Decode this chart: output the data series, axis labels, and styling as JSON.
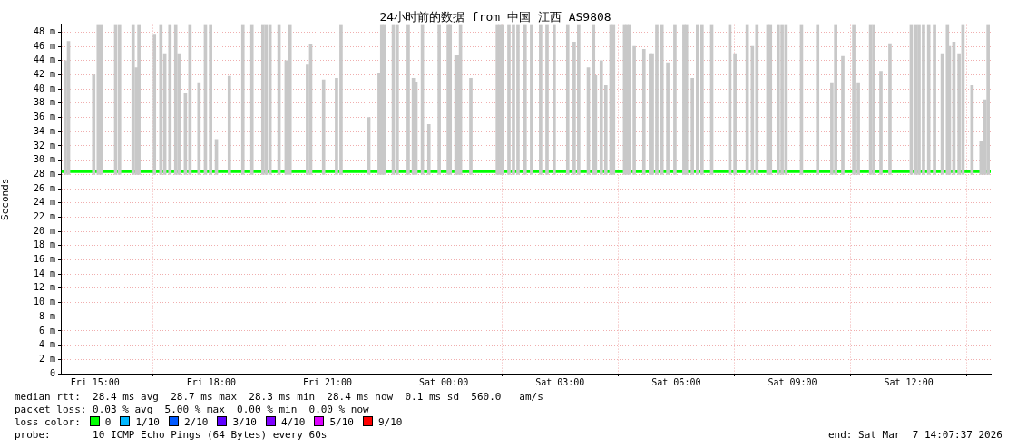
{
  "chart_data": {
    "type": "line",
    "title": "24小时前的数据 from 中国 江西 AS9808",
    "ylabel": "Seconds",
    "legend_title": "loss color:",
    "legend": "bottom",
    "grid": true,
    "marker": "none",
    "xlim": [
      "2026-03-06T14:07",
      "2026-03-07T14:07"
    ],
    "xticks": [
      {
        "value": "2026-03-06T15:00",
        "label": "Fri 15:00"
      },
      {
        "value": "2026-03-06T18:00",
        "label": "Fri 18:00"
      },
      {
        "value": "2026-03-06T21:00",
        "label": "Fri 21:00"
      },
      {
        "value": "2026-03-07T00:00",
        "label": "Sat 00:00"
      },
      {
        "value": "2026-03-07T03:00",
        "label": "Sat 03:00"
      },
      {
        "value": "2026-03-07T06:00",
        "label": "Sat 06:00"
      },
      {
        "value": "2026-03-07T09:00",
        "label": "Sat 09:00"
      },
      {
        "value": "2026-03-07T12:00",
        "label": "Sat 12:00"
      }
    ],
    "ylim": [
      0,
      49
    ],
    "yticks": [
      0,
      {
        "value": 2,
        "label": "2 m"
      },
      {
        "value": 4,
        "label": "4 m"
      },
      {
        "value": 6,
        "label": "6 m"
      },
      {
        "value": 8,
        "label": "8 m"
      },
      {
        "value": 10,
        "label": "10 m"
      },
      {
        "value": 12,
        "label": "12 m"
      },
      {
        "value": 14,
        "label": "14 m"
      },
      {
        "value": 16,
        "label": "16 m"
      },
      {
        "value": 18,
        "label": "18 m"
      },
      {
        "value": 20,
        "label": "20 m"
      },
      {
        "value": 22,
        "label": "22 m"
      },
      {
        "value": 24,
        "label": "24 m"
      },
      {
        "value": 26,
        "label": "26 m"
      },
      {
        "value": 28,
        "label": "28 m"
      },
      {
        "value": 30,
        "label": "30 m"
      },
      {
        "value": 32,
        "label": "32 m"
      },
      {
        "value": 34,
        "label": "34 m"
      },
      {
        "value": 36,
        "label": "36 m"
      },
      {
        "value": 38,
        "label": "38 m"
      },
      {
        "value": 40,
        "label": "40 m"
      },
      {
        "value": 42,
        "label": "42 m"
      },
      {
        "value": 44,
        "label": "44 m"
      },
      {
        "value": 46,
        "label": "46 m"
      },
      {
        "value": 48,
        "label": "48 m"
      }
    ],
    "series": [
      {
        "type": "bar",
        "color": "#c8c8c8",
        "x": [
          "2026-03-06T14:14",
          "2026-03-06T14:19",
          "2026-03-06T14:58",
          "2026-03-06T15:05",
          "2026-03-06T15:10",
          "2026-03-06T15:32",
          "2026-03-06T15:38",
          "2026-03-06T15:59",
          "2026-03-06T16:04",
          "2026-03-06T16:08",
          "2026-03-06T16:32",
          "2026-03-06T16:42",
          "2026-03-06T16:48",
          "2026-03-06T16:56",
          "2026-03-06T17:05",
          "2026-03-06T17:10",
          "2026-03-06T17:20",
          "2026-03-06T17:27",
          "2026-03-06T17:41",
          "2026-03-06T17:51",
          "2026-03-06T17:59",
          "2026-03-06T18:08",
          "2026-03-06T18:28",
          "2026-03-06T18:49",
          "2026-03-06T19:03",
          "2026-03-06T19:20",
          "2026-03-06T19:25",
          "2026-03-06T19:31",
          "2026-03-06T19:45",
          "2026-03-06T19:56",
          "2026-03-06T20:02",
          "2026-03-06T20:29",
          "2026-03-06T20:34",
          "2026-03-06T20:54",
          "2026-03-06T21:14",
          "2026-03-06T21:21",
          "2026-03-06T22:04",
          "2026-03-06T22:20",
          "2026-03-06T22:24",
          "2026-03-06T22:28",
          "2026-03-06T22:42",
          "2026-03-06T22:48",
          "2026-03-06T23:05",
          "2026-03-06T23:13",
          "2026-03-06T23:17",
          "2026-03-06T23:27",
          "2026-03-06T23:37",
          "2026-03-06T23:53",
          "2026-03-07T00:07",
          "2026-03-07T00:10",
          "2026-03-07T00:19",
          "2026-03-07T00:23",
          "2026-03-07T00:26",
          "2026-03-07T00:42",
          "2026-03-07T01:23",
          "2026-03-07T01:27",
          "2026-03-07T01:31",
          "2026-03-07T01:41",
          "2026-03-07T01:48",
          "2026-03-07T01:55",
          "2026-03-07T02:06",
          "2026-03-07T02:16",
          "2026-03-07T02:30",
          "2026-03-07T02:40",
          "2026-03-07T02:51",
          "2026-03-07T03:12",
          "2026-03-07T03:22",
          "2026-03-07T03:29",
          "2026-03-07T03:44",
          "2026-03-07T03:52",
          "2026-03-07T03:55",
          "2026-03-07T04:04",
          "2026-03-07T04:11",
          "2026-03-07T04:19",
          "2026-03-07T04:23",
          "2026-03-07T04:40",
          "2026-03-07T04:44",
          "2026-03-07T04:48",
          "2026-03-07T04:55",
          "2026-03-07T05:10",
          "2026-03-07T05:20",
          "2026-03-07T05:23",
          "2026-03-07T05:30",
          "2026-03-07T05:38",
          "2026-03-07T05:47",
          "2026-03-07T05:58",
          "2026-03-07T06:12",
          "2026-03-07T06:16",
          "2026-03-07T06:25",
          "2026-03-07T06:33",
          "2026-03-07T06:40",
          "2026-03-07T06:55",
          "2026-03-07T07:23",
          "2026-03-07T07:31",
          "2026-03-07T07:50",
          "2026-03-07T07:58",
          "2026-03-07T08:05",
          "2026-03-07T08:22",
          "2026-03-07T08:26",
          "2026-03-07T08:38",
          "2026-03-07T08:44",
          "2026-03-07T08:50",
          "2026-03-07T09:14",
          "2026-03-07T09:39",
          "2026-03-07T10:01",
          "2026-03-07T10:07",
          "2026-03-07T10:18",
          "2026-03-07T10:35",
          "2026-03-07T10:42",
          "2026-03-07T11:01",
          "2026-03-07T11:06",
          "2026-03-07T11:17",
          "2026-03-07T11:31",
          "2026-03-07T12:04",
          "2026-03-07T12:11",
          "2026-03-07T12:16",
          "2026-03-07T12:23",
          "2026-03-07T12:31",
          "2026-03-07T12:40",
          "2026-03-07T12:52",
          "2026-03-07T13:00",
          "2026-03-07T13:03",
          "2026-03-07T13:10",
          "2026-03-07T13:18",
          "2026-03-07T13:24",
          "2026-03-07T13:38",
          "2026-03-07T13:52",
          "2026-03-07T13:58",
          "2026-03-07T14:03"
        ],
        "base": [
          28,
          28,
          28,
          28,
          28,
          28,
          28,
          28,
          28,
          28,
          28,
          28,
          28,
          28,
          28,
          28,
          28,
          28,
          28,
          28,
          28,
          28,
          28,
          28,
          28,
          28,
          28,
          28,
          28,
          28,
          28,
          28,
          28,
          28,
          28,
          28,
          28,
          28,
          28,
          28,
          28,
          28,
          28,
          28,
          28,
          28,
          28,
          28,
          28,
          28,
          28,
          28,
          28,
          28,
          28,
          28,
          28,
          28,
          28,
          28,
          28,
          28,
          28,
          28,
          28,
          28,
          28,
          28,
          28,
          28,
          28,
          28,
          28,
          28,
          28,
          28,
          28,
          28,
          28,
          28,
          28,
          28,
          28,
          28,
          28,
          28,
          28,
          28,
          28,
          28,
          28,
          28,
          28,
          28,
          28,
          28,
          28,
          28,
          28,
          28,
          28,
          28,
          28,
          28,
          28,
          28,
          28,
          28,
          28,
          28,
          28,
          28,
          28,
          28,
          28,
          28,
          28,
          28,
          28,
          28,
          28,
          28,
          28,
          28,
          28,
          28,
          28,
          28,
          28
        ],
        "values": [
          16,
          18.7,
          14,
          21,
          21,
          21,
          21,
          21,
          15,
          21,
          19.6,
          21,
          17,
          21,
          21,
          17,
          11.4,
          21,
          12.9,
          21,
          21,
          4.9,
          13.8,
          21,
          21,
          21,
          21,
          21,
          21,
          16,
          21,
          15.4,
          18.3,
          13.3,
          13.5,
          21,
          8,
          14.2,
          21,
          21,
          21,
          21,
          21,
          13.5,
          13,
          21,
          7,
          21,
          21,
          21,
          16.7,
          16.7,
          21,
          13.5,
          21,
          21,
          21,
          21,
          21,
          21,
          21,
          21,
          21,
          21,
          21,
          21,
          18.6,
          21,
          15,
          21,
          13.9,
          16,
          12.5,
          21,
          21,
          21,
          21,
          21,
          18,
          17.6,
          17,
          17,
          21,
          21,
          15.7,
          21,
          21,
          21,
          13.5,
          21,
          21,
          21,
          21,
          17,
          21,
          18,
          21,
          21,
          21,
          21,
          21,
          21,
          21,
          21,
          12.9,
          21,
          16.6,
          21,
          12.9,
          21,
          21,
          14.5,
          18.4,
          21,
          21,
          21,
          21,
          21,
          21,
          17,
          21,
          18,
          18.6,
          17,
          21,
          12.5,
          4.6,
          10.5,
          21
        ]
      },
      {
        "name": "0",
        "color": "#00ff00",
        "x": [
          "2026-03-06T14:08",
          "2026-03-06T15:00",
          "2026-03-06T16:00",
          "2026-03-06T17:00",
          "2026-03-06T18:00",
          "2026-03-06T19:00",
          "2026-03-06T20:00",
          "2026-03-06T21:00",
          "2026-03-06T22:00",
          "2026-03-06T23:00",
          "2026-03-07T00:00",
          "2026-03-07T01:00",
          "2026-03-07T02:00",
          "2026-03-07T03:00",
          "2026-03-07T04:00",
          "2026-03-07T05:00",
          "2026-03-07T06:00",
          "2026-03-07T07:00",
          "2026-03-07T08:00",
          "2026-03-07T09:00",
          "2026-03-07T10:00",
          "2026-03-07T11:00",
          "2026-03-07T12:00",
          "2026-03-07T13:00",
          "2026-03-07T14:07"
        ],
        "values": [
          28.4,
          28.4,
          28.4,
          28.4,
          28.4,
          28.4,
          28.4,
          28.4,
          28.4,
          28.4,
          28.4,
          28.4,
          28.4,
          28.4,
          28.4,
          28.4,
          28.4,
          28.4,
          28.4,
          28.4,
          28.4,
          28.4,
          28.4,
          28.4,
          28.4
        ]
      },
      {
        "name": "1/10",
        "color": "#00b8ff"
      },
      {
        "name": "2/10",
        "color": "#0059ff"
      },
      {
        "name": "3/10",
        "color": "#5e00ff"
      },
      {
        "name": "4/10",
        "color": "#7e00ff"
      },
      {
        "name": "5/10",
        "color": "#dd00ff"
      },
      {
        "name": "9/10",
        "color": "#ff0000"
      }
    ],
    "annotations": [
      "median rtt:  28.4 ms avg  28.7 ms max  28.3 ms min  28.4 ms now  0.1 ms sd  560.0   am/s",
      "packet loss: 0.03 % avg  5.00 % max  0.00 % min  0.00 % now",
      "probe:       10 ICMP Echo Pings (64 Bytes) every 60s",
      "end: Sat Mar  7 14:07:37 2026"
    ]
  }
}
